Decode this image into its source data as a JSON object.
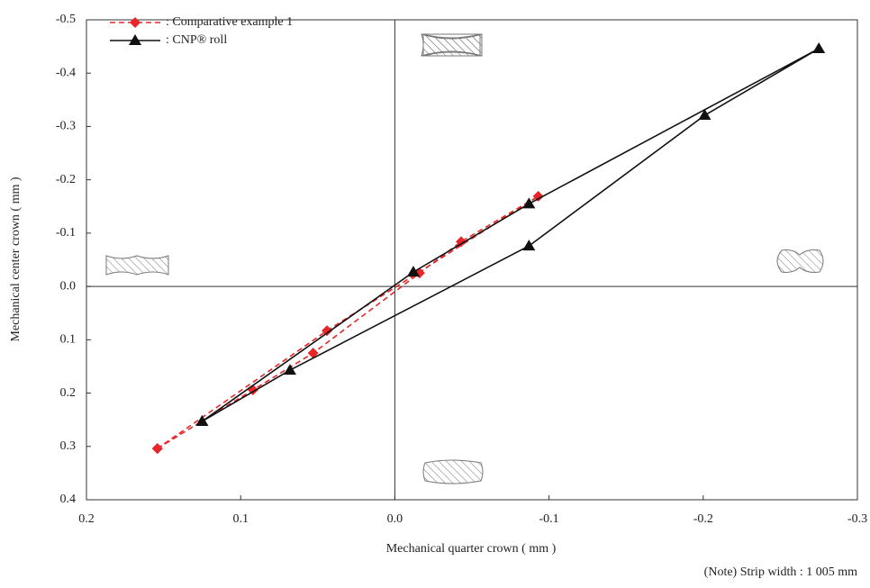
{
  "chart_data": {
    "type": "line",
    "x_label": "Mechanical quarter crown ( mm )",
    "y_label": "Mechanical center crown ( mm )",
    "annotation": "(Note)   Strip width : 1 005 mm",
    "xlim": [
      0.2,
      -0.3
    ],
    "xticks": [
      0.2,
      0.1,
      {
        "value": 0,
        "label": "0.0"
      },
      -0.1,
      -0.2,
      -0.3
    ],
    "ylim": [
      0.4,
      -0.5
    ],
    "yticks": [
      -0.5,
      -0.4,
      -0.3,
      -0.2,
      -0.1,
      {
        "value": 0,
        "label": "0.0"
      },
      0.1,
      0.2,
      0.3,
      0.4
    ],
    "series": [
      {
        "name": ": Comparative example 1",
        "color": "#e8262a",
        "marker": "diamond",
        "dashed": true,
        "x": [
          0.154,
          0.092,
          0.053,
          -0.016,
          -0.043,
          -0.093,
          0.044,
          0.154
        ],
        "values": [
          0.304,
          0.194,
          0.125,
          -0.025,
          -0.084,
          -0.169,
          0.083,
          0.304
        ]
      },
      {
        "name": ": CNP® roll",
        "color": "#111111",
        "marker": "triangle",
        "dashed": false,
        "x": [
          0.125,
          -0.012,
          -0.087,
          -0.275,
          -0.201,
          -0.087,
          0.068,
          0.125
        ],
        "values": [
          0.253,
          -0.027,
          -0.155,
          -0.446,
          -0.321,
          -0.076,
          0.157,
          0.253
        ]
      }
    ]
  }
}
